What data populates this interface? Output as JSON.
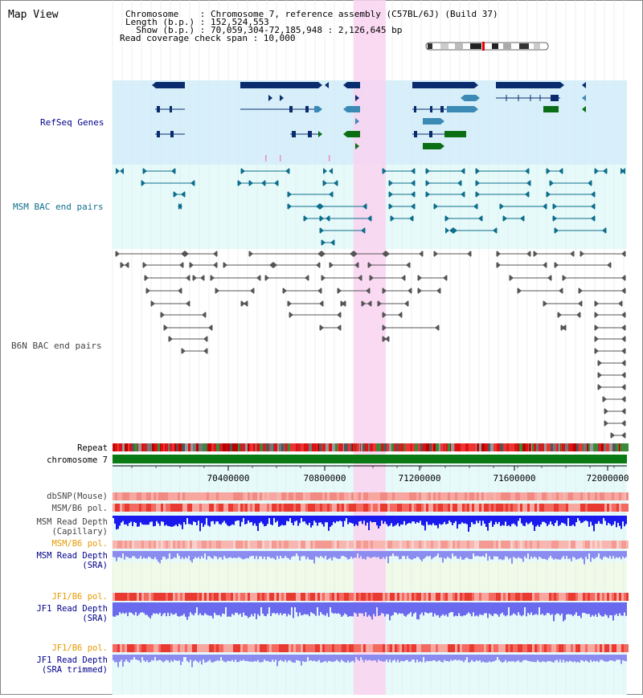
{
  "title": "Map View",
  "header": {
    "line1": "Chromosome    : Chromosome 7, reference assembly (C57BL/6J) (Build 37)",
    "line2": "Length (b.p.) : 152,524,553",
    "line3": "  Show (b.p.) : 70,059,304-72,185,948 : 2,126,645 bp",
    "line4": "Read coverage check span : 10,000"
  },
  "tracks": {
    "refseq": "RefSeq Genes",
    "msm_bac": "MSM BAC end pairs",
    "b6n_bac": "B6N BAC end pairs",
    "repeat": "Repeat",
    "chrom": "chromosome 7"
  },
  "axis": {
    "ticks": [
      "70400000",
      "70800000",
      "71200000",
      "71600000",
      "72000000"
    ]
  },
  "lower_tracks": {
    "dbsnp": "dbSNP(Mouse)",
    "msm_b6_pol": "MSM/B6 pol.",
    "msm_depth_cap_1": "MSM Read Depth",
    "msm_depth_cap_2": "(Capillary)",
    "msm_b6_pol_sra": "MSM/B6 pol.",
    "msm_depth_sra_1": "MSM Read Depth",
    "msm_depth_sra_2": "(SRA)",
    "jf1_b6_pol_1": "JF1/B6 pol.",
    "jf1_depth_1": "JF1 Read Depth",
    "jf1_depth_2": "(SRA)",
    "jf1_b6_pol_2": "JF1/B6 pol.",
    "jf1_trim_1": "JF1 Read Depth",
    "jf1_trim_2": "(SRA trimmed)"
  },
  "colors": {
    "refseq_bg": "#d6effa",
    "msm_bg": "#e6fafa",
    "highlight": "#f9d2f0",
    "gene_dark": "#0a2c6e",
    "gene_mid": "#3b8ab5",
    "gene_green": "#0a6e14",
    "msm_line": "#0e6e8c",
    "b6n_line": "#555555",
    "depth_dark": "#1a1aee",
    "depth_light": "#8c8cf0",
    "depth_mid": "#6a6aee",
    "label_blue": "#00008b",
    "label_orange": "#e69a00",
    "label_gray": "#444444",
    "chrom_green": "#0a7a14"
  }
}
